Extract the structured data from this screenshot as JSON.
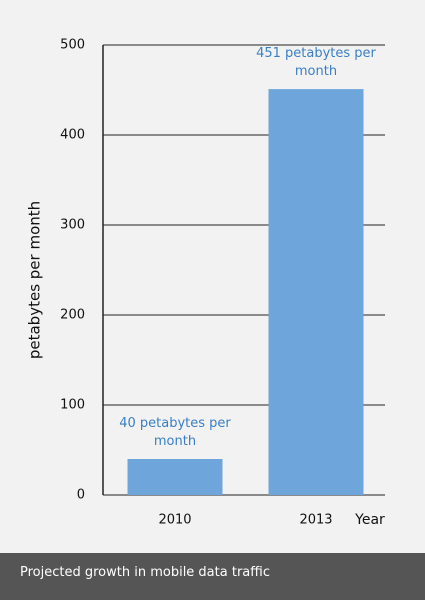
{
  "chart_data": {
    "type": "bar",
    "caption": "Projected growth in mobile data traffic",
    "x_label": "Year",
    "y_label": "petabytes per month",
    "categories": [
      "2010",
      "2013"
    ],
    "values": [
      40,
      451
    ],
    "value_labels": [
      "40 petabytes per month",
      "451 petabytes per month"
    ],
    "color": "#6ea6dc",
    "ylim": [
      0,
      500
    ],
    "yticks": [
      0,
      100,
      200,
      300,
      400,
      500
    ],
    "grid": true
  }
}
